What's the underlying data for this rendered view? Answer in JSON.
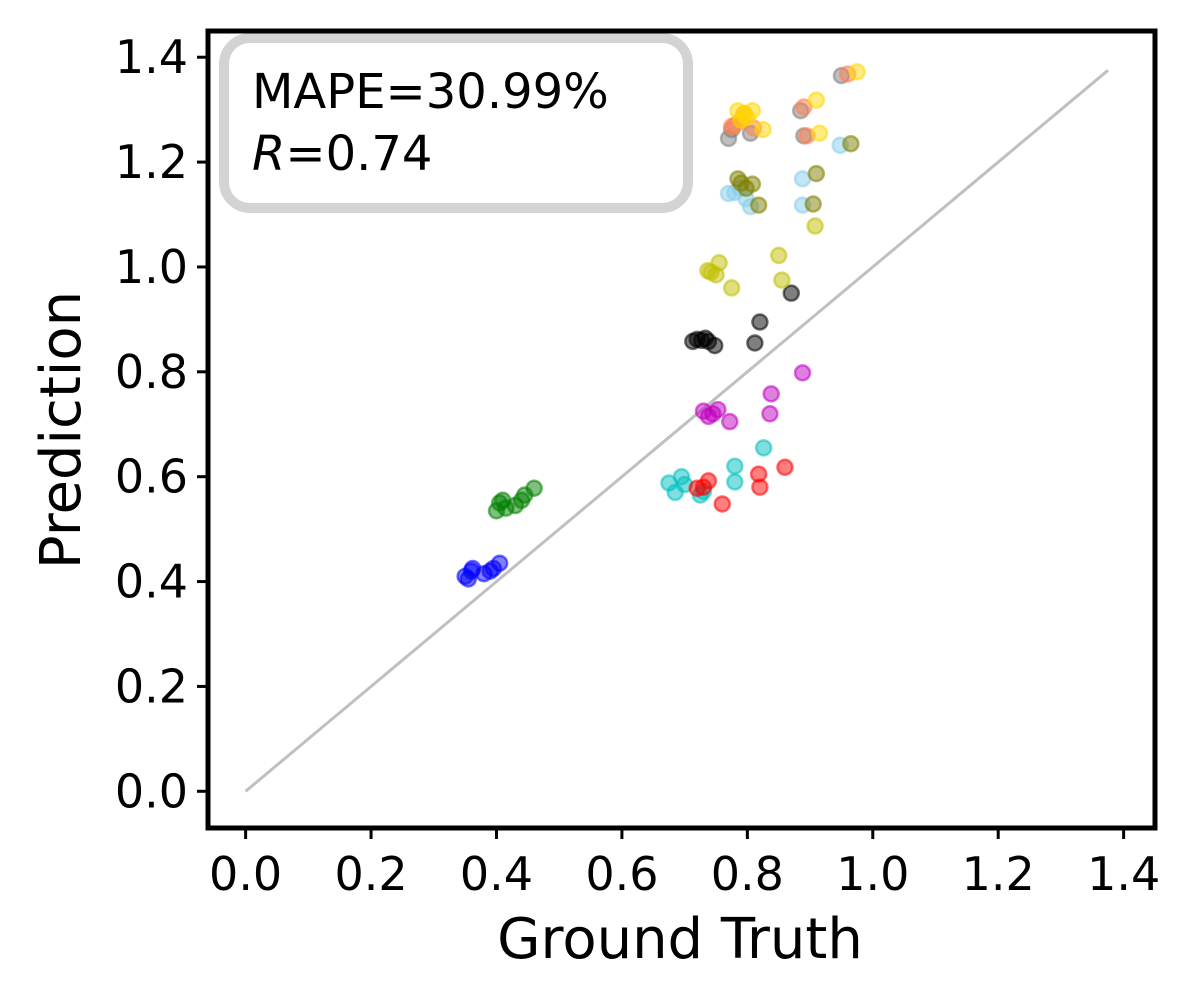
{
  "chart_data": {
    "type": "scatter",
    "title": "",
    "xlabel": "Ground Truth",
    "ylabel": "Prediction",
    "xlim": [
      -0.06,
      1.45
    ],
    "ylim": [
      -0.07,
      1.45
    ],
    "xticks": [
      0.0,
      0.2,
      0.4,
      0.6,
      0.8,
      1.0,
      1.2,
      1.4
    ],
    "yticks": [
      0.0,
      0.2,
      0.4,
      0.6,
      0.8,
      1.0,
      1.2,
      1.4
    ],
    "xtick_labels": [
      "0.0",
      "0.2",
      "0.4",
      "0.6",
      "0.8",
      "1.0",
      "1.2",
      "1.4"
    ],
    "ytick_labels": [
      "0.0",
      "0.2",
      "0.4",
      "0.6",
      "0.8",
      "1.0",
      "1.2",
      "1.4"
    ],
    "grid": false,
    "reference_line": {
      "x": [
        0.0,
        1.375
      ],
      "y": [
        0.0,
        1.375
      ],
      "color": "#c0c0c0"
    },
    "annotation": {
      "line1": "MAPE=30.99%",
      "line2_var": "R",
      "line2_value": "=0.74",
      "placement": "top-left"
    },
    "series": [
      {
        "name": "blue",
        "color": "#0000ff",
        "points": [
          [
            0.35,
            0.41
          ],
          [
            0.355,
            0.405
          ],
          [
            0.36,
            0.42
          ],
          [
            0.362,
            0.425
          ],
          [
            0.38,
            0.415
          ],
          [
            0.39,
            0.42
          ],
          [
            0.395,
            0.425
          ],
          [
            0.405,
            0.435
          ]
        ]
      },
      {
        "name": "green",
        "color": "#008000",
        "points": [
          [
            0.4,
            0.535
          ],
          [
            0.405,
            0.55
          ],
          [
            0.41,
            0.555
          ],
          [
            0.415,
            0.54
          ],
          [
            0.43,
            0.545
          ],
          [
            0.44,
            0.555
          ],
          [
            0.445,
            0.565
          ],
          [
            0.46,
            0.578
          ]
        ]
      },
      {
        "name": "cyan",
        "color": "#00bfbf",
        "points": [
          [
            0.675,
            0.588
          ],
          [
            0.685,
            0.57
          ],
          [
            0.695,
            0.6
          ],
          [
            0.7,
            0.585
          ],
          [
            0.725,
            0.565
          ],
          [
            0.73,
            0.572
          ],
          [
            0.78,
            0.62
          ],
          [
            0.78,
            0.59
          ],
          [
            0.826,
            0.655
          ]
        ]
      },
      {
        "name": "red",
        "color": "#ff0000",
        "points": [
          [
            0.72,
            0.578
          ],
          [
            0.73,
            0.58
          ],
          [
            0.738,
            0.592
          ],
          [
            0.76,
            0.548
          ],
          [
            0.818,
            0.605
          ],
          [
            0.82,
            0.58
          ],
          [
            0.86,
            0.618
          ]
        ]
      },
      {
        "name": "magenta",
        "color": "#bf00bf",
        "points": [
          [
            0.73,
            0.725
          ],
          [
            0.738,
            0.715
          ],
          [
            0.745,
            0.72
          ],
          [
            0.753,
            0.728
          ],
          [
            0.772,
            0.705
          ],
          [
            0.836,
            0.72
          ],
          [
            0.838,
            0.758
          ],
          [
            0.888,
            0.798
          ]
        ]
      },
      {
        "name": "black",
        "color": "#000000",
        "points": [
          [
            0.713,
            0.858
          ],
          [
            0.72,
            0.862
          ],
          [
            0.727,
            0.86
          ],
          [
            0.733,
            0.864
          ],
          [
            0.738,
            0.858
          ],
          [
            0.748,
            0.85
          ],
          [
            0.812,
            0.855
          ],
          [
            0.82,
            0.895
          ],
          [
            0.87,
            0.95
          ]
        ]
      },
      {
        "name": "yellow-green",
        "color": "#bfbf00",
        "points": [
          [
            0.737,
            0.993
          ],
          [
            0.742,
            0.99
          ],
          [
            0.75,
            0.985
          ],
          [
            0.755,
            1.008
          ],
          [
            0.775,
            0.96
          ],
          [
            0.85,
            1.022
          ],
          [
            0.855,
            0.975
          ],
          [
            0.908,
            1.078
          ]
        ]
      },
      {
        "name": "light-blue",
        "color": "#87ceeb",
        "points": [
          [
            0.77,
            1.14
          ],
          [
            0.78,
            1.142
          ],
          [
            0.788,
            1.15
          ],
          [
            0.798,
            1.13
          ],
          [
            0.805,
            1.115
          ],
          [
            0.888,
            1.168
          ],
          [
            0.888,
            1.118
          ],
          [
            0.948,
            1.232
          ]
        ]
      },
      {
        "name": "olive",
        "color": "#808000",
        "points": [
          [
            0.785,
            1.168
          ],
          [
            0.79,
            1.16
          ],
          [
            0.798,
            1.15
          ],
          [
            0.808,
            1.158
          ],
          [
            0.818,
            1.118
          ],
          [
            0.905,
            1.12
          ],
          [
            0.91,
            1.178
          ],
          [
            0.965,
            1.235
          ]
        ]
      },
      {
        "name": "gray",
        "color": "#808080",
        "points": [
          [
            0.77,
            1.245
          ],
          [
            0.775,
            1.262
          ],
          [
            0.805,
            1.255
          ],
          [
            0.885,
            1.298
          ],
          [
            0.89,
            1.25
          ],
          [
            0.95,
            1.365
          ]
        ]
      },
      {
        "name": "orange",
        "color": "#ff7f50",
        "points": [
          [
            0.775,
            1.268
          ],
          [
            0.78,
            1.27
          ],
          [
            0.79,
            1.28
          ],
          [
            0.795,
            1.292
          ],
          [
            0.81,
            1.265
          ],
          [
            0.89,
            1.305
          ],
          [
            0.895,
            1.25
          ],
          [
            0.96,
            1.368
          ]
        ]
      },
      {
        "name": "gold",
        "color": "#ffd700",
        "points": [
          [
            0.785,
            1.298
          ],
          [
            0.79,
            1.28
          ],
          [
            0.795,
            1.292
          ],
          [
            0.8,
            1.285
          ],
          [
            0.808,
            1.298
          ],
          [
            0.825,
            1.262
          ],
          [
            0.91,
            1.318
          ],
          [
            0.915,
            1.255
          ],
          [
            0.975,
            1.372
          ]
        ]
      }
    ]
  }
}
